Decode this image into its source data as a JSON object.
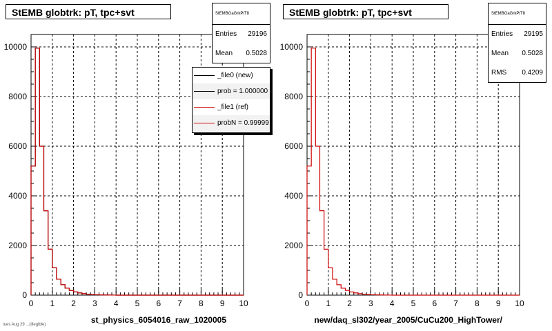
{
  "footer": "tues Aug 29 ...(illegible)",
  "panels": [
    {
      "title": "StEMB globtrk: pT, tpc+svt",
      "stats": {
        "name": "StEMBGaGrkPtT8",
        "entries_label": "Entries",
        "entries": "29196",
        "mean_label": "Mean",
        "mean": "0.5028"
      },
      "legend": [
        {
          "label": "_file0 (new)",
          "color": "#000000"
        },
        {
          "label": "prob = 1.000000",
          "color": "#000000"
        },
        {
          "label": "_file1 (ref)",
          "color": "#cc0000"
        },
        {
          "label": "probN = 0.99999",
          "color": "#cc0000"
        }
      ]
    },
    {
      "title": "StEMB globtrk: pT, tpc+svt",
      "stats": {
        "name": "StEMBGaGrkPtT8",
        "entries_label": "Entries",
        "entries": "29195",
        "mean_label": "Mean",
        "mean": "0.5028",
        "rms_label": "RMS",
        "rms": "0.4209"
      }
    }
  ],
  "chart_data": [
    {
      "type": "bar",
      "title": "StEMB globtrk: pT, tpc+svt",
      "xlabel": "st_physics_6054016_raw_1020005",
      "ylabel": "",
      "xlim": [
        0,
        10
      ],
      "ylim": [
        0,
        10500
      ],
      "xticks": [
        "0",
        "1",
        "2",
        "3",
        "4",
        "5",
        "6",
        "7",
        "8",
        "9",
        "10"
      ],
      "yticks": [
        "0",
        "2000",
        "4000",
        "6000",
        "8000",
        "10000"
      ],
      "grid": true,
      "bin_width": 0.2,
      "series": [
        {
          "color": "#000000",
          "values": [
            5200,
            9950,
            6000,
            3400,
            1850,
            1100,
            640,
            420,
            280,
            190,
            130,
            90,
            60,
            40,
            25,
            15,
            10,
            6,
            4,
            2,
            1,
            1,
            0,
            0,
            0,
            0,
            0,
            0,
            0,
            0,
            0,
            0,
            0,
            0,
            0,
            0,
            0,
            0,
            0,
            0,
            0,
            0,
            0,
            0,
            0,
            0,
            0,
            0,
            0,
            0
          ]
        },
        {
          "color": "#cc0000",
          "values": [
            5200,
            9950,
            6000,
            3400,
            1850,
            1100,
            640,
            420,
            280,
            190,
            130,
            90,
            60,
            40,
            25,
            15,
            10,
            6,
            4,
            2,
            1,
            1,
            0,
            0,
            0,
            0,
            0,
            0,
            0,
            0,
            0,
            0,
            0,
            0,
            0,
            0,
            0,
            0,
            0,
            0,
            0,
            0,
            0,
            0,
            0,
            0,
            0,
            0,
            0,
            0
          ]
        }
      ]
    },
    {
      "type": "bar",
      "title": "StEMB globtrk: pT, tpc+svt",
      "xlabel": "new/daq_sl302/year_2005/CuCu200_HighTower/",
      "ylabel": "",
      "xlim": [
        0,
        10
      ],
      "ylim": [
        0,
        10500
      ],
      "xticks": [
        "0",
        "1",
        "2",
        "3",
        "4",
        "5",
        "6",
        "7",
        "8",
        "9",
        "10"
      ],
      "yticks": [
        "0",
        "2000",
        "4000",
        "6000",
        "8000",
        "10000"
      ],
      "grid": true,
      "bin_width": 0.2,
      "series": [
        {
          "color": "#cc0000",
          "values": [
            5200,
            9950,
            6000,
            3400,
            1850,
            1100,
            640,
            420,
            280,
            190,
            130,
            90,
            60,
            40,
            25,
            15,
            10,
            6,
            4,
            2,
            1,
            1,
            0,
            0,
            0,
            0,
            0,
            0,
            0,
            0,
            0,
            0,
            0,
            0,
            0,
            0,
            0,
            0,
            0,
            0,
            0,
            0,
            0,
            0,
            0,
            0,
            0,
            0,
            0,
            0
          ]
        }
      ]
    }
  ]
}
